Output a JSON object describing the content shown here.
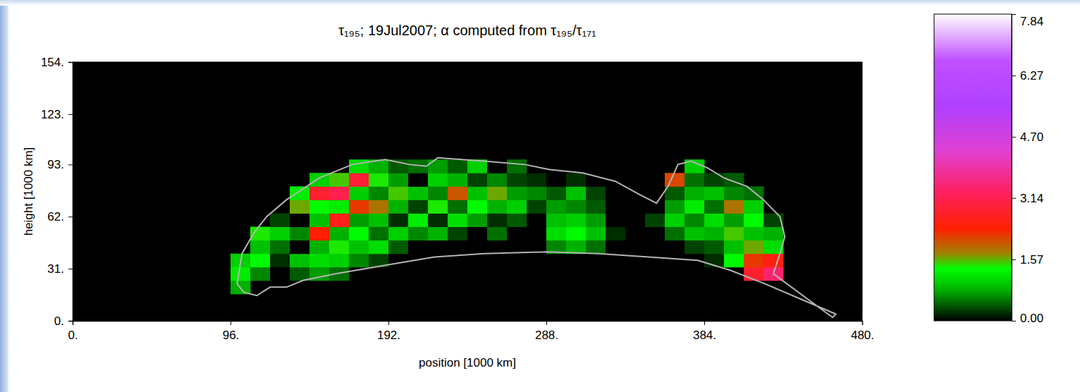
{
  "chart_data": {
    "type": "heatmap",
    "title": "τ₁₉₅; 19Jul2007; α computed from τ₁₉₅/τ₁₇₁",
    "xlabel": "position [1000 km]",
    "ylabel": "height [1000 km]",
    "xlim": [
      0,
      480
    ],
    "xticks": [
      {
        "value": 0,
        "label": "0."
      },
      {
        "value": 96,
        "label": "96."
      },
      {
        "value": 192,
        "label": "192."
      },
      {
        "value": 288,
        "label": "288."
      },
      {
        "value": 384,
        "label": "384."
      },
      {
        "value": 480,
        "label": "480."
      }
    ],
    "ylim": [
      0,
      154
    ],
    "yticks": [
      {
        "value": 0,
        "label": "0."
      },
      {
        "value": 31,
        "label": "31."
      },
      {
        "value": 62,
        "label": "62."
      },
      {
        "value": 93,
        "label": "93."
      },
      {
        "value": 123,
        "label": "123."
      },
      {
        "value": 154,
        "label": "154."
      }
    ],
    "x": [
      96,
      108,
      120,
      132,
      144,
      156,
      168,
      180,
      192,
      204,
      216,
      228,
      240,
      252,
      264,
      276,
      288,
      300,
      312,
      324,
      336,
      348,
      360,
      372,
      384,
      396,
      408,
      420,
      432
    ],
    "y": [
      16,
      24,
      32,
      40,
      48,
      56,
      64,
      72,
      80,
      88,
      96
    ],
    "z": [
      [
        0.8,
        null,
        null,
        null,
        null,
        null,
        null,
        null,
        null,
        null,
        null,
        null,
        null,
        null,
        null,
        null,
        null,
        null,
        null,
        null,
        null,
        null,
        null,
        null,
        null,
        null,
        null,
        null
      ],
      [
        1.2,
        0.6,
        0,
        0.4,
        0.7,
        0.5,
        null,
        null,
        null,
        null,
        null,
        null,
        null,
        null,
        null,
        null,
        null,
        null,
        null,
        null,
        null,
        null,
        null,
        null,
        null,
        null,
        2.8,
        3.4
      ],
      [
        1.0,
        1.3,
        0.2,
        0.9,
        1.1,
        1.0,
        0.6,
        0.3,
        0,
        0,
        null,
        null,
        null,
        null,
        null,
        null,
        null,
        null,
        null,
        null,
        null,
        null,
        null,
        0,
        0.2,
        1.3,
        2.2,
        2.5
      ],
      [
        null,
        0.9,
        0.5,
        0,
        0.8,
        1.4,
        0.9,
        1.1,
        0.4,
        0,
        0,
        0,
        0,
        0,
        0,
        0,
        0.6,
        0.8,
        0.5,
        0,
        0,
        0,
        0,
        0.3,
        0.4,
        0.9,
        1.6,
        1.1
      ],
      [
        null,
        1.4,
        1.0,
        0.6,
        2.4,
        0.8,
        1.3,
        0.5,
        1.0,
        0.6,
        0.8,
        0.3,
        0,
        0.5,
        0,
        0,
        1.1,
        1.3,
        0.9,
        0.2,
        0,
        0,
        0.5,
        0.9,
        0.8,
        1.5,
        0.9,
        0.8
      ],
      [
        null,
        null,
        0.3,
        0,
        0.9,
        2.6,
        0.7,
        0.9,
        0.2,
        1.2,
        0.2,
        1.1,
        0.7,
        0.2,
        0.4,
        0,
        0.9,
        1.0,
        0.7,
        0,
        0,
        0.3,
        1.0,
        0.6,
        1.1,
        0.7,
        1.3,
        0.3
      ],
      [
        null,
        null,
        null,
        1.6,
        1.3,
        1.2,
        2.2,
        1.8,
        0.8,
        0.3,
        1.4,
        0.5,
        1.3,
        0.8,
        1.0,
        0.3,
        0.7,
        0.6,
        0.4,
        0,
        0,
        0,
        0.7,
        1.2,
        0.5,
        1.8,
        1.0,
        null
      ],
      [
        null,
        null,
        null,
        1.2,
        2.8,
        3.1,
        1.0,
        0.6,
        1.5,
        0.9,
        0.6,
        2.0,
        0.9,
        1.6,
        0.7,
        0.6,
        0.4,
        0.9,
        0.3,
        0,
        0,
        null,
        0.4,
        0.8,
        0.9,
        0.6,
        0.5,
        null
      ],
      [
        null,
        null,
        null,
        null,
        1.0,
        1.5,
        2.9,
        1.4,
        0.7,
        0,
        1.0,
        0.8,
        0.3,
        0.6,
        0.3,
        0.2,
        0,
        0.2,
        0,
        0,
        null,
        null,
        2.1,
        0.5,
        0.3,
        0.4,
        null,
        null
      ],
      [
        null,
        null,
        null,
        null,
        null,
        null,
        1.1,
        0.8,
        0.4,
        0.5,
        0.7,
        0.4,
        1.0,
        0,
        0.5,
        0,
        null,
        null,
        null,
        null,
        null,
        null,
        null,
        1.0,
        null,
        null,
        null,
        null
      ]
    ],
    "outline": {
      "x": [
        100,
        103,
        110,
        118,
        130,
        150,
        170,
        190,
        205,
        215,
        222,
        250,
        275,
        290,
        310,
        330,
        345,
        355,
        362,
        368,
        376,
        386,
        396,
        410,
        420,
        430,
        433,
        430,
        426,
        462,
        464,
        421,
        400,
        380,
        350,
        320,
        288,
        250,
        220,
        190,
        160,
        140,
        130,
        120,
        112,
        104
      ],
      "y": [
        22,
        40,
        52,
        62,
        72,
        85,
        93,
        96,
        93,
        92,
        97,
        95,
        93,
        90,
        88,
        83,
        75,
        70,
        80,
        93,
        95,
        91,
        85,
        80,
        72,
        62,
        50,
        40,
        28,
        2,
        4,
        22,
        30,
        36,
        38,
        40,
        41,
        40,
        38,
        33,
        28,
        24,
        20,
        20,
        15,
        17
      ]
    },
    "colorbar": {
      "range": [
        0,
        7.84
      ],
      "ticks": [
        {
          "value": 0,
          "label": "0.00"
        },
        {
          "value": 1.57,
          "label": "1.57"
        },
        {
          "value": 3.14,
          "label": "3.14"
        },
        {
          "value": 4.7,
          "label": "4.70"
        },
        {
          "value": 6.27,
          "label": "6.27"
        },
        {
          "value": 7.84,
          "label": "7.84"
        }
      ]
    }
  }
}
